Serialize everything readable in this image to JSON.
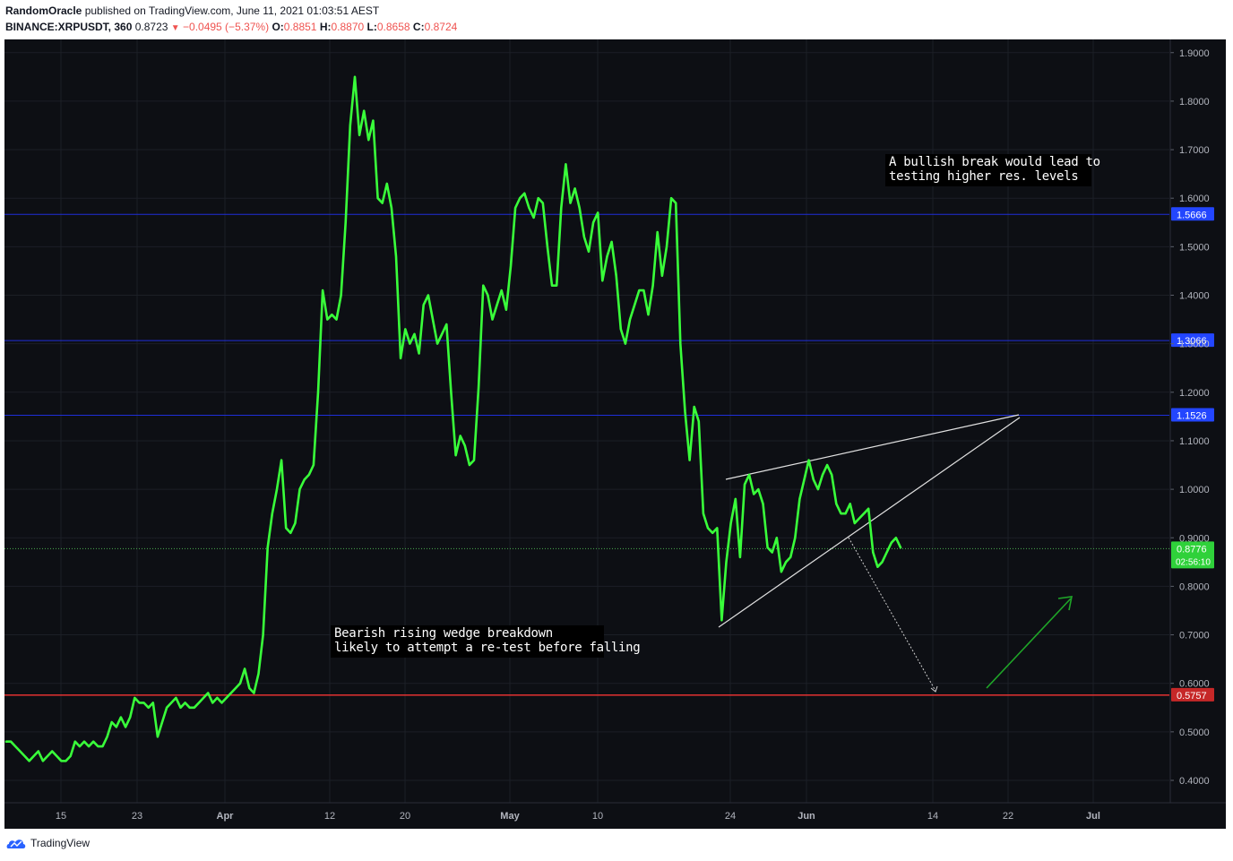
{
  "header": {
    "author": "RandomOracle",
    "published_text": "published on TradingView.com, June 11, 2021 01:03:51 AEST",
    "symbol": "BINANCE:XRPUSDT, 360",
    "last": "0.8723",
    "change": "−0.0495 (−5.37%)",
    "open_label": "O:",
    "open": "0.8851",
    "high_label": "H:",
    "high": "0.8870",
    "low_label": "L:",
    "low": "0.8658",
    "close_label": "C:",
    "close": "0.8724"
  },
  "footer": {
    "brand": "TradingView"
  },
  "colors": {
    "background": "#0d0f14",
    "price_line": "#39ff3a",
    "resistance": "#1f2fd8",
    "support": "#d32f2f",
    "current_price": "#4caf50",
    "wedge": "#e0e0e0",
    "arrow_bull": "#1fa528",
    "arrow_bear": "#cfcfcf"
  },
  "annotations": [
    {
      "id": "bullish",
      "lines": [
        "A bullish break would lead to",
        "testing higher res. levels"
      ]
    },
    {
      "id": "bearish",
      "lines": [
        "Bearish rising wedge breakdown",
        "likely to attempt a re-test before falling"
      ]
    }
  ],
  "chart_data": {
    "type": "line",
    "title": "",
    "xlabel": "",
    "ylabel": "",
    "ylim": [
      0.3445,
      1.9445
    ],
    "grid": true,
    "x_ticks": [
      "15",
      "23",
      "Apr",
      "12",
      "20",
      "May",
      "10",
      "24",
      "Jun",
      "14",
      "22",
      "Jul"
    ],
    "y_ticks": [
      "0.4000",
      "0.5000",
      "0.6000",
      "0.7000",
      "0.8000",
      "0.9000",
      "1.0000",
      "1.1000",
      "1.2000",
      "1.3000",
      "1.4000",
      "1.5000",
      "1.6000",
      "1.7000",
      "1.8000",
      "1.9000"
    ],
    "series": [
      {
        "values": [
          0.48,
          0.48,
          0.47,
          0.46,
          0.45,
          0.44,
          0.45,
          0.46,
          0.44,
          0.45,
          0.46,
          0.45,
          0.44,
          0.44,
          0.45,
          0.48,
          0.47,
          0.48,
          0.47,
          0.48,
          0.47,
          0.47,
          0.49,
          0.52,
          0.51,
          0.53,
          0.51,
          0.53,
          0.57,
          0.56,
          0.56,
          0.55,
          0.56,
          0.49,
          0.52,
          0.55,
          0.56,
          0.57,
          0.55,
          0.56,
          0.55,
          0.55,
          0.56,
          0.57,
          0.58,
          0.56,
          0.57,
          0.56,
          0.57,
          0.58,
          0.59,
          0.6,
          0.63,
          0.59,
          0.58,
          0.62,
          0.7,
          0.88,
          0.95,
          1.0,
          1.06,
          0.92,
          0.91,
          0.93,
          1.0,
          1.02,
          1.03,
          1.05,
          1.2,
          1.41,
          1.35,
          1.36,
          1.35,
          1.4,
          1.55,
          1.75,
          1.85,
          1.73,
          1.78,
          1.72,
          1.76,
          1.6,
          1.59,
          1.63,
          1.58,
          1.48,
          1.27,
          1.33,
          1.3,
          1.32,
          1.28,
          1.38,
          1.4,
          1.35,
          1.3,
          1.32,
          1.34,
          1.2,
          1.07,
          1.11,
          1.09,
          1.05,
          1.06,
          1.21,
          1.42,
          1.4,
          1.35,
          1.38,
          1.41,
          1.37,
          1.46,
          1.58,
          1.6,
          1.61,
          1.58,
          1.56,
          1.6,
          1.59,
          1.5,
          1.42,
          1.42,
          1.58,
          1.67,
          1.59,
          1.62,
          1.58,
          1.52,
          1.49,
          1.55,
          1.57,
          1.43,
          1.48,
          1.51,
          1.44,
          1.33,
          1.3,
          1.35,
          1.38,
          1.41,
          1.41,
          1.36,
          1.42,
          1.53,
          1.44,
          1.5,
          1.6,
          1.59,
          1.3,
          1.16,
          1.06,
          1.17,
          1.14,
          0.95,
          0.92,
          0.91,
          0.92,
          0.73,
          0.85,
          0.93,
          0.98,
          0.86,
          1.01,
          1.03,
          0.99,
          1.0,
          0.97,
          0.88,
          0.87,
          0.9,
          0.83,
          0.85,
          0.86,
          0.9,
          0.98,
          1.02,
          1.06,
          1.02,
          1.0,
          1.03,
          1.05,
          1.03,
          0.97,
          0.95,
          0.95,
          0.97,
          0.93,
          0.94,
          0.95,
          0.96,
          0.87,
          0.84,
          0.85,
          0.87,
          0.89,
          0.9,
          0.88
        ]
      }
    ],
    "levels": [
      {
        "value": 1.5666,
        "label": "1.5666",
        "kind": "resistance"
      },
      {
        "value": 1.3066,
        "label": "1.3066",
        "kind": "resistance"
      },
      {
        "value": 1.1526,
        "label": "1.1526",
        "kind": "resistance"
      },
      {
        "value": 0.5757,
        "label": "0.5757",
        "kind": "support"
      }
    ],
    "current": {
      "value": 0.8776,
      "label": "0.8776",
      "countdown": "02:56:10"
    }
  }
}
